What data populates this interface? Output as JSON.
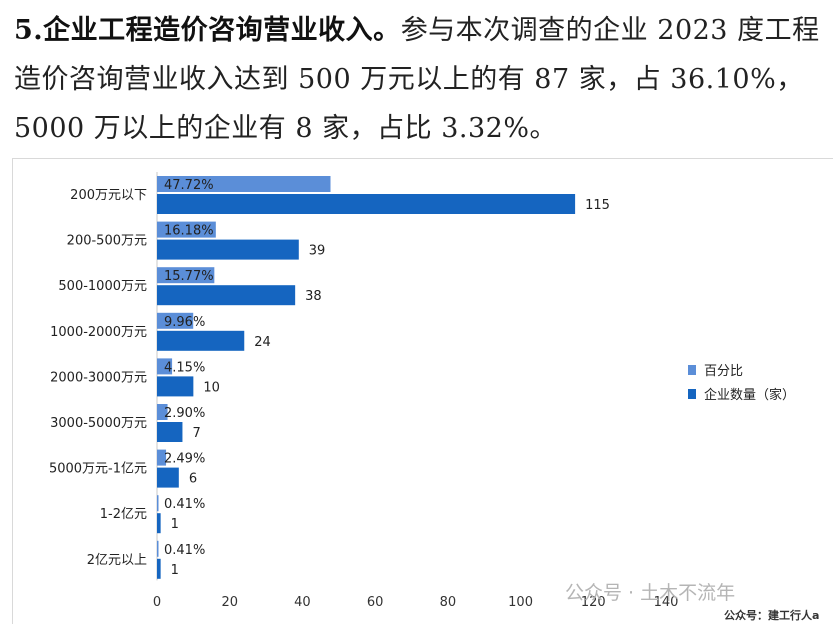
{
  "paragraph": {
    "heading": "5.企业工程造价咨询营业收入。",
    "body": "参与本次调查的企业 2023 度工程造价咨询营业收入达到 500 万元以上的有 87 家，占 36.10%，5000 万以上的企业有 8 家，占比 3.32%。"
  },
  "chart_data": {
    "type": "bar",
    "orientation": "horizontal",
    "categories": [
      "200万元以下",
      "200-500万元",
      "500-1000万元",
      "1000-2000万元",
      "2000-3000万元",
      "3000-5000万元",
      "5000万元-1亿元",
      "1-2亿元",
      "2亿元以上"
    ],
    "series": [
      {
        "name": "百分比",
        "values": [
          47.72,
          16.18,
          15.77,
          9.96,
          4.15,
          2.9,
          2.49,
          0.41,
          0.41
        ],
        "labels": [
          "47.72%",
          "16.18%",
          "15.77%",
          "9.96%",
          "4.15%",
          "2.90%",
          "2.49%",
          "0.41%",
          "0.41%"
        ],
        "color": "#5b8ed8"
      },
      {
        "name": "企业数量（家）",
        "values": [
          115,
          39,
          38,
          24,
          10,
          7,
          6,
          1,
          1
        ],
        "labels": [
          "115",
          "39",
          "38",
          "24",
          "10",
          "7",
          "6",
          "1",
          "1"
        ],
        "color": "#1565c0"
      }
    ],
    "xlim": [
      0,
      140
    ],
    "xticks": [
      "0",
      "20",
      "40",
      "60",
      "80",
      "100",
      "120",
      "140"
    ],
    "legend": "right",
    "grid": false
  },
  "watermark": "公众号 · 土木不流年",
  "footer_note": "公众号：建工行人a"
}
